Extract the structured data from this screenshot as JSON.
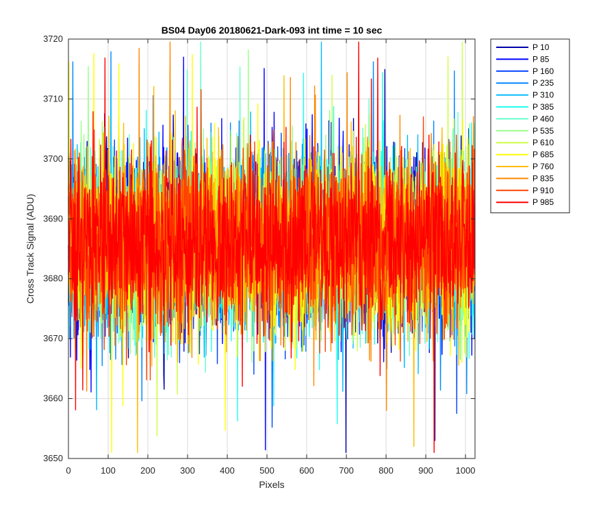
{
  "chart_data": {
    "type": "line",
    "title": "BS04 Day06 20180621-Dark-093 int time = 10 sec",
    "xlabel": "Pixels",
    "ylabel": "Cross Track Signal (ADU)",
    "xlim": [
      0,
      1024
    ],
    "ylim": [
      3650,
      3720
    ],
    "xticks": [
      0,
      100,
      200,
      300,
      400,
      500,
      600,
      700,
      800,
      900,
      1000
    ],
    "yticks": [
      3650,
      3660,
      3670,
      3680,
      3690,
      3700,
      3710,
      3720
    ],
    "grid": true,
    "legend_position": "outside-top-right",
    "pixel_count": 1024,
    "series": [
      {
        "name": "P 10",
        "color": "#0000aa",
        "mean": 3686,
        "spread": 8.5
      },
      {
        "name": "P 85",
        "color": "#0000ff",
        "mean": 3686,
        "spread": 8.5
      },
      {
        "name": "P 160",
        "color": "#0044ff",
        "mean": 3686,
        "spread": 8.5
      },
      {
        "name": "P 235",
        "color": "#0088ff",
        "mean": 3686,
        "spread": 8.5
      },
      {
        "name": "P 310",
        "color": "#00bbff",
        "mean": 3686,
        "spread": 8.5
      },
      {
        "name": "P 385",
        "color": "#22ffee",
        "mean": 3686,
        "spread": 8.5
      },
      {
        "name": "P 460",
        "color": "#66ffcc",
        "mean": 3686,
        "spread": 8.5
      },
      {
        "name": "P 535",
        "color": "#99ff88",
        "mean": 3686,
        "spread": 8.5
      },
      {
        "name": "P 610",
        "color": "#ccff44",
        "mean": 3686,
        "spread": 8.5
      },
      {
        "name": "P 685",
        "color": "#ffff00",
        "mean": 3686,
        "spread": 8.5
      },
      {
        "name": "P 760",
        "color": "#ffbb00",
        "mean": 3686,
        "spread": 8.5
      },
      {
        "name": "P 835",
        "color": "#ff8800",
        "mean": 3686,
        "spread": 8.5
      },
      {
        "name": "P 910",
        "color": "#ff4400",
        "mean": 3686,
        "spread": 8.5
      },
      {
        "name": "P 985",
        "color": "#ff0000",
        "mean": 3686,
        "spread": 8.5
      }
    ]
  }
}
